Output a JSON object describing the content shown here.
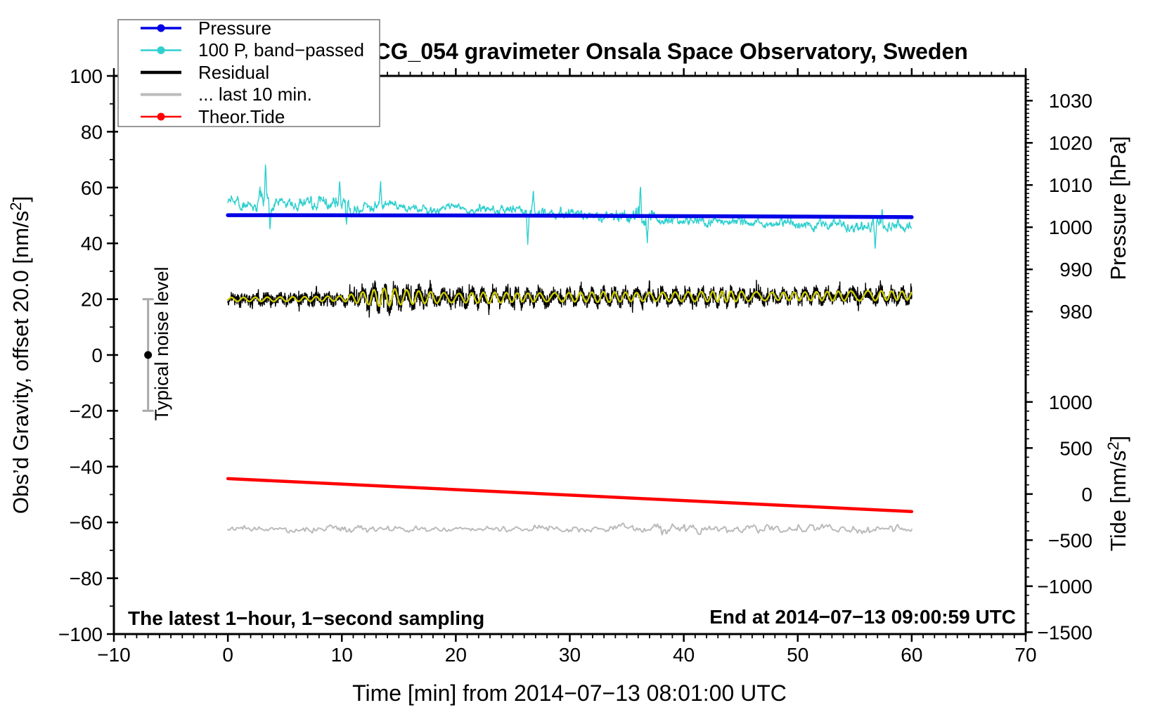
{
  "chart_data": {
    "type": "line",
    "title": "SCG_054 gravimeter Onsala Space Observatory, Sweden",
    "xlabel": "Time [min] from 2014−07−13 08:01:00 UTC",
    "annotations": {
      "sampling": "The latest 1−hour, 1−second sampling",
      "end": "End at 2014−07−13 09:00:59 UTC"
    },
    "axes": {
      "x": {
        "min": -10,
        "max": 70,
        "major_step": 10,
        "minor_step": 1
      },
      "gravity": {
        "label_main": "Obs’d Gravity, offset 20.0 [nm/s",
        "label_sup": "2",
        "label_end": "]",
        "min": -100,
        "max": 100,
        "major_step": 20,
        "minor_step": 10
      },
      "pressure": {
        "label": "Pressure [hPa]",
        "tick_values": [
          1030,
          1020,
          1010,
          1000,
          990,
          980
        ],
        "minor_step": 1,
        "minor_range": [
          965,
          1035
        ],
        "hpa_at_gravity0": 969.7,
        "hpa_per_gravity": 0.6617
      },
      "tide": {
        "label_main": "Tide [nm/s",
        "label_sup": "2",
        "label_end": "]",
        "tick_values": [
          1000,
          500,
          0,
          -500,
          -1000,
          -1500
        ],
        "minor_step": 100,
        "minor_range": [
          -1500,
          1100
        ],
        "tide_at_gravity0": 1510,
        "tide_per_gravity": 30.3
      }
    },
    "legend": [
      {
        "label": "Pressure",
        "color": "#0000E6",
        "dot": true,
        "lw": 3.5
      },
      {
        "label": "100 P, band−passed",
        "color": "#2FCFCF",
        "dot": true,
        "lw": 2.5
      },
      {
        "label": "Residual",
        "color": "#000000",
        "dot": false,
        "lw": 4.5
      },
      {
        "label": "... last 10 min.",
        "color": "#BBBBBB",
        "dot": false,
        "lw": 4
      },
      {
        "label": "Theor.Tide",
        "color": "#FF0000",
        "dot": true,
        "lw": 2.5
      }
    ],
    "noise_bar": {
      "x": -7,
      "center": 0,
      "half_width": 20,
      "label": "Typical noise level"
    },
    "series": {
      "pressure": {
        "name": "Pressure",
        "color": "#0000E6",
        "width": 5.5,
        "keys_gravity": [
          [
            0,
            50.1
          ],
          [
            10,
            50.05
          ],
          [
            20,
            50.0
          ],
          [
            30,
            49.9
          ],
          [
            40,
            49.75
          ],
          [
            50,
            49.6
          ],
          [
            60,
            49.4
          ]
        ],
        "approx_hpa": [
          [
            0,
            1002.9
          ],
          [
            60,
            1002.4
          ]
        ]
      },
      "band_passed_pressure": {
        "name": "100 P, band-passed",
        "color": "#2FCFCF",
        "width": 1.4,
        "mean_keys": [
          [
            0,
            54.8
          ],
          [
            5,
            54.2
          ],
          [
            10,
            53.4
          ],
          [
            15,
            53.0
          ],
          [
            20,
            52.2
          ],
          [
            25,
            51.3
          ],
          [
            30,
            50.4
          ],
          [
            35,
            49.6
          ],
          [
            40,
            48.4
          ],
          [
            45,
            47.6
          ],
          [
            50,
            47.2
          ],
          [
            55,
            46.6
          ],
          [
            60,
            46.0
          ]
        ],
        "amp_keys": [
          [
            0,
            2
          ],
          [
            3,
            4.5
          ],
          [
            4.5,
            2.5
          ],
          [
            9,
            3.5
          ],
          [
            10.5,
            4
          ],
          [
            12,
            2.5
          ],
          [
            13.5,
            3
          ],
          [
            15,
            2
          ],
          [
            20,
            1.8
          ],
          [
            25,
            2
          ],
          [
            26.5,
            3.5
          ],
          [
            28,
            2
          ],
          [
            33,
            2.5
          ],
          [
            36,
            4
          ],
          [
            38,
            2.2
          ],
          [
            45,
            2
          ],
          [
            50,
            2.2
          ],
          [
            55,
            2.5
          ],
          [
            57,
            3.2
          ],
          [
            60,
            2.2
          ]
        ],
        "spikes": [
          [
            3.3,
            11
          ],
          [
            3.7,
            -11
          ],
          [
            9.8,
            9
          ],
          [
            10.4,
            -9
          ],
          [
            13.4,
            8
          ],
          [
            26.3,
            -12
          ],
          [
            26.8,
            8
          ],
          [
            36.2,
            9
          ],
          [
            36.8,
            -9
          ],
          [
            56.8,
            -10
          ],
          [
            57.4,
            5
          ]
        ]
      },
      "residual": {
        "name": "Residual",
        "color": "#000000",
        "width": 1.4,
        "base_keys": [
          [
            0,
            19.9
          ],
          [
            5,
            20.0
          ],
          [
            10,
            20.2
          ],
          [
            13,
            20.6
          ],
          [
            15,
            20.8
          ],
          [
            20,
            20.4
          ],
          [
            25,
            20.6
          ],
          [
            30,
            20.7
          ],
          [
            35,
            20.8
          ],
          [
            40,
            20.9
          ],
          [
            45,
            21.0
          ],
          [
            50,
            21.0
          ],
          [
            55,
            21.2
          ],
          [
            60,
            21.3
          ]
        ],
        "amp_keys": [
          [
            0,
            2.6
          ],
          [
            10,
            2.8
          ],
          [
            12,
            4.5
          ],
          [
            14,
            5.5
          ],
          [
            16,
            4.5
          ],
          [
            18,
            3.4
          ],
          [
            22,
            3.6
          ],
          [
            26,
            3.2
          ],
          [
            30,
            3.2
          ],
          [
            35,
            3.4
          ],
          [
            40,
            3.0
          ],
          [
            45,
            3.2
          ],
          [
            50,
            3.0
          ],
          [
            55,
            3.4
          ],
          [
            60,
            3.2
          ]
        ]
      },
      "residual_band": {
        "name": "Residual band-passed",
        "color": "#CCCC00",
        "width": 2.4,
        "period_min": 1.05,
        "env_keys": [
          [
            0,
            0.7
          ],
          [
            10,
            0.9
          ],
          [
            12,
            2.2
          ],
          [
            13.5,
            3.3
          ],
          [
            15,
            2.8
          ],
          [
            17,
            2.2
          ],
          [
            20,
            1.6
          ],
          [
            23,
            2.0
          ],
          [
            26,
            1.5
          ],
          [
            30,
            1.6
          ],
          [
            33,
            1.9
          ],
          [
            36,
            1.5
          ],
          [
            40,
            1.7
          ],
          [
            44,
            1.9
          ],
          [
            48,
            1.4
          ],
          [
            52,
            1.6
          ],
          [
            56,
            1.8
          ],
          [
            60,
            1.5
          ]
        ]
      },
      "last_10_min": {
        "name": "... last 10 min.",
        "color": "#BBBBBB",
        "width": 2,
        "base": -62.3,
        "amp_keys": [
          [
            0,
            1.1
          ],
          [
            8,
            1.5
          ],
          [
            16,
            1.0
          ],
          [
            24,
            1.2
          ],
          [
            32,
            1.3
          ],
          [
            39,
            2.2
          ],
          [
            44,
            1.6
          ],
          [
            50,
            1.5
          ],
          [
            56,
            1.8
          ],
          [
            60,
            1.3
          ]
        ]
      },
      "theor_tide": {
        "name": "Theor.Tide",
        "color": "#FF0000",
        "width": 4.5,
        "keys_gravity": [
          [
            0,
            -44.3
          ],
          [
            60,
            -56.1
          ]
        ],
        "approx_tide": [
          [
            0,
            170
          ],
          [
            60,
            -190
          ]
        ]
      }
    }
  }
}
